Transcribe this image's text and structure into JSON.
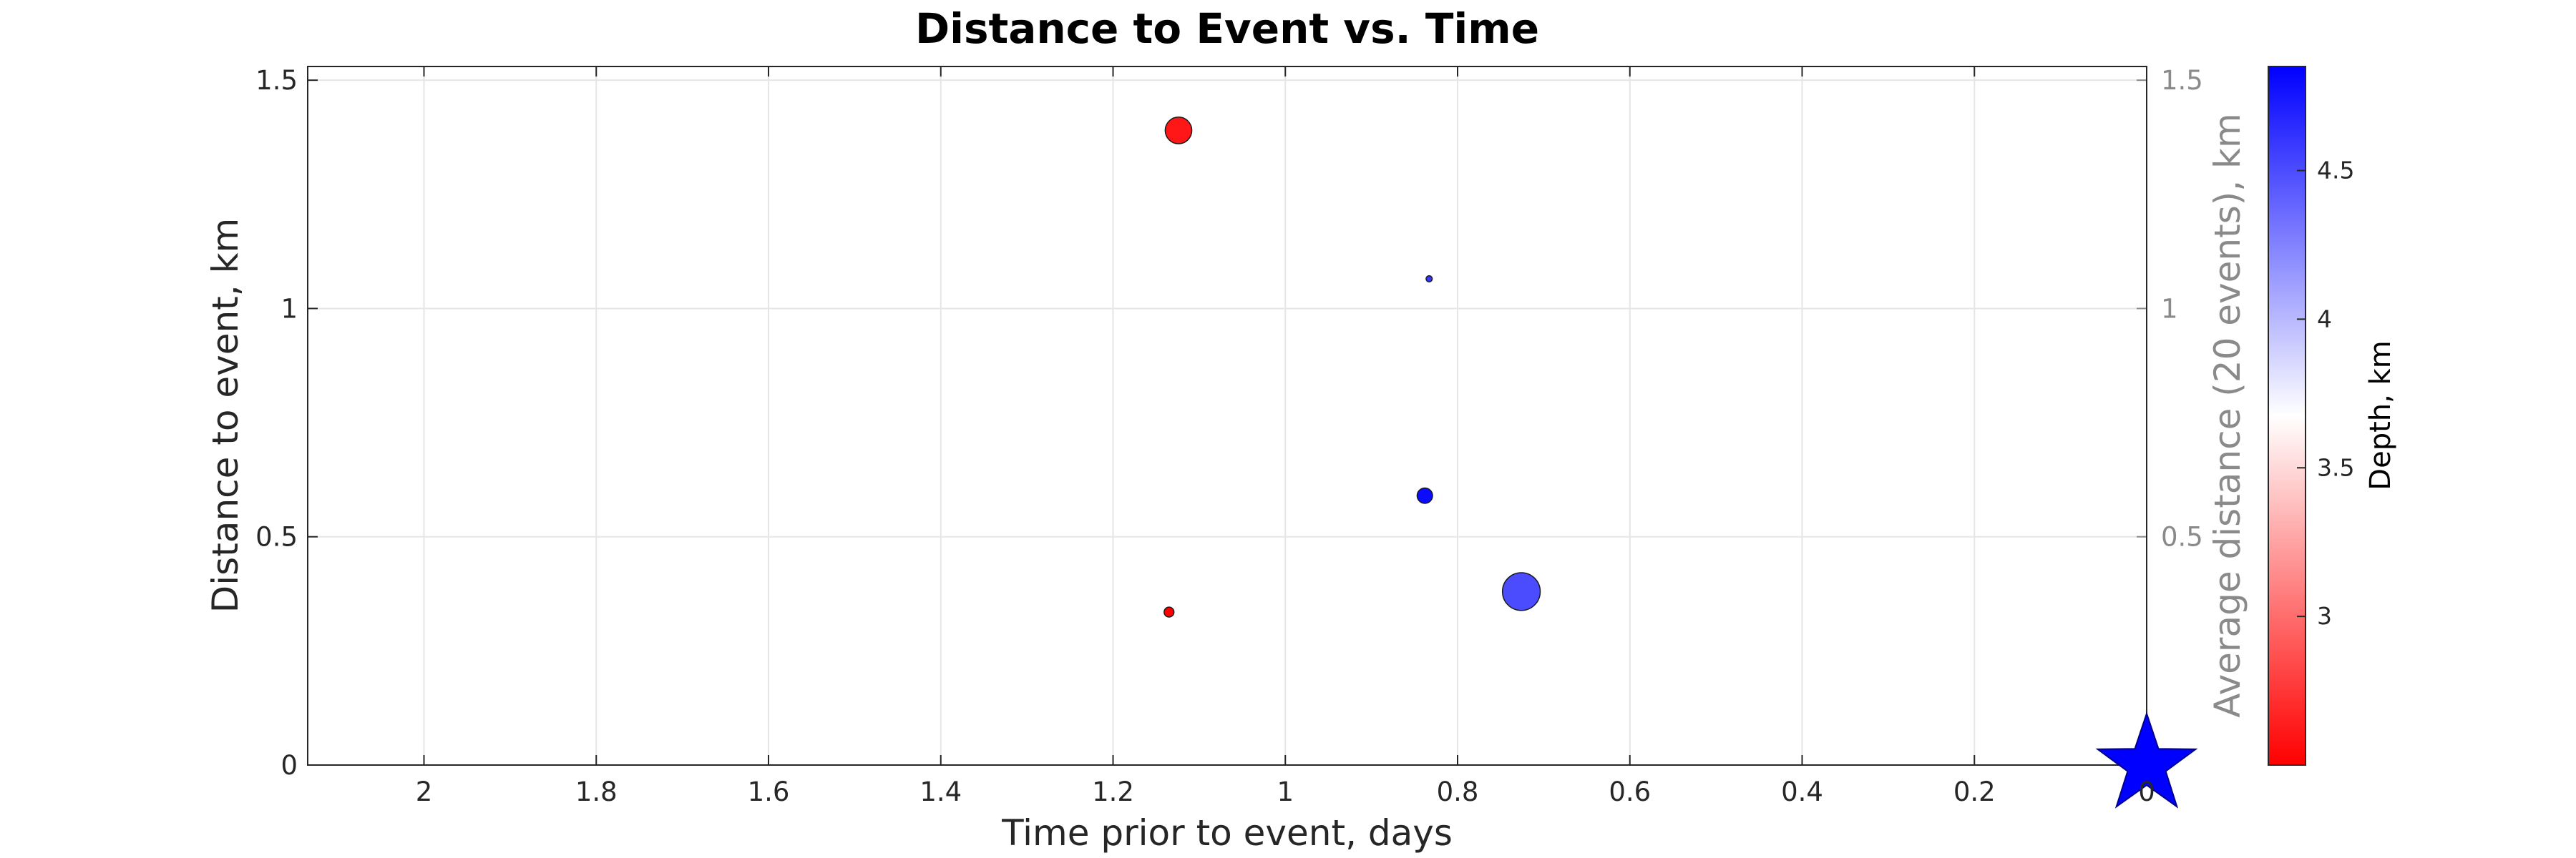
{
  "chart_data": {
    "type": "scatter",
    "title": "Distance to Event vs. Time",
    "xlabel": "Time prior to event, days",
    "ylabel": "Distance to event, km",
    "ylabel_right": "Average distance (20 events), km",
    "xlim": [
      2.135,
      0
    ],
    "x_reversed": true,
    "ylim": [
      0,
      1.53
    ],
    "x_ticks": [
      2,
      1.8,
      1.6,
      1.4,
      1.2,
      1,
      0.8,
      0.6,
      0.4,
      0.2,
      0
    ],
    "x_tick_labels": [
      "2",
      "1.8",
      "1.6",
      "1.4",
      "1.2",
      "1",
      "0.8",
      "0.6",
      "0.4",
      "0.2",
      "0"
    ],
    "y_ticks": [
      0,
      0.5,
      1,
      1.5
    ],
    "y_tick_labels": [
      "0",
      "0.5",
      "1",
      "1.5"
    ],
    "y_ticks_right": [
      0.5,
      1,
      1.5
    ],
    "y_tick_labels_right": [
      "0.5",
      "1",
      "1.5"
    ],
    "grid": true,
    "points": [
      {
        "x": 1.124,
        "y": 1.39,
        "depth": 2.6,
        "magnitude": 1.2
      },
      {
        "x": 0.833,
        "y": 1.065,
        "depth": 4.6,
        "magnitude": 0.1
      },
      {
        "x": 0.838,
        "y": 0.59,
        "depth": 4.8,
        "magnitude": 0.6
      },
      {
        "x": 1.135,
        "y": 0.335,
        "depth": 2.5,
        "magnitude": 0.3
      },
      {
        "x": 0.726,
        "y": 0.38,
        "depth": 4.5,
        "magnitude": 1.8
      }
    ],
    "target_event": {
      "x": 0,
      "y": 0,
      "marker": "star",
      "color": "#0000ff"
    },
    "colorbar": {
      "label": "Depth, km",
      "range": [
        2.5,
        4.85
      ],
      "ticks": [
        3,
        3.5,
        4,
        4.5
      ],
      "tick_labels": [
        "3",
        "3.5",
        "4",
        "4.5"
      ],
      "color_low": "#ff0000",
      "color_mid": "#ffffff",
      "color_high": "#0000ff"
    }
  }
}
